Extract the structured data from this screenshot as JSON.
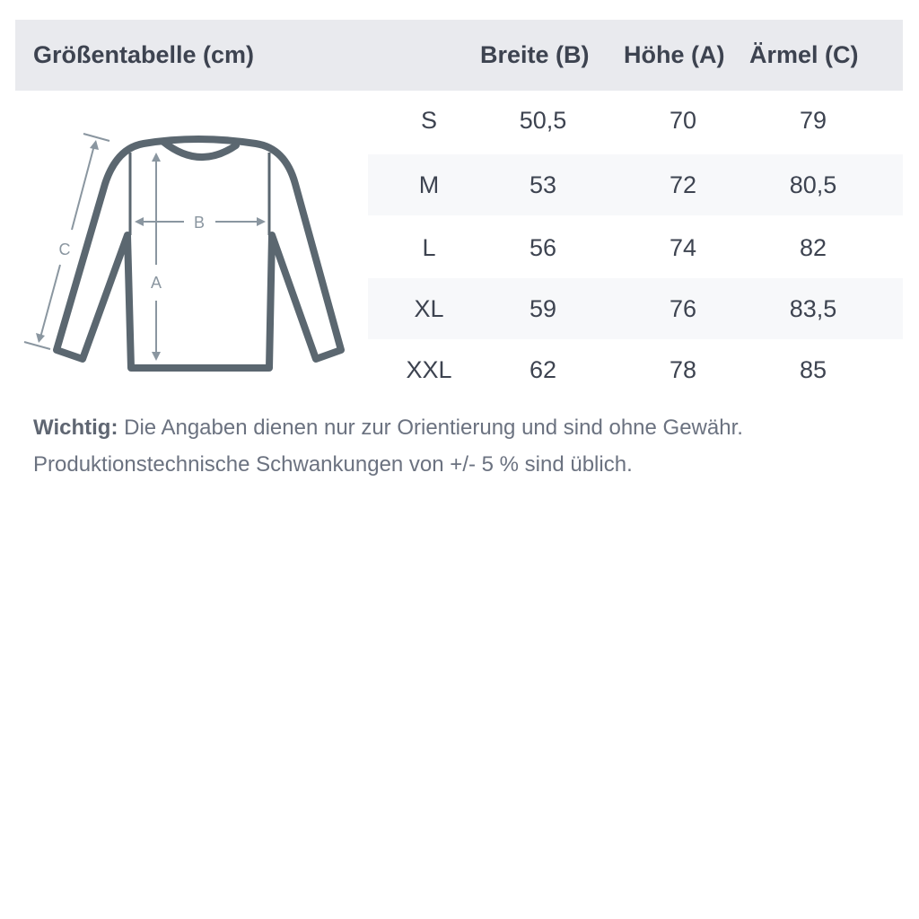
{
  "table": {
    "title": "Größentabelle (cm)",
    "columns": [
      "Breite (B)",
      "Höhe (A)",
      "Ärmel (C)"
    ],
    "rows": [
      {
        "size": "S",
        "values": [
          "50,5",
          "70",
          "79"
        ]
      },
      {
        "size": "M",
        "values": [
          "53",
          "72",
          "80,5"
        ]
      },
      {
        "size": "L",
        "values": [
          "56",
          "74",
          "82"
        ]
      },
      {
        "size": "XL",
        "values": [
          "59",
          "76",
          "83,5"
        ]
      },
      {
        "size": "XXL",
        "values": [
          "62",
          "78",
          "85"
        ]
      }
    ]
  },
  "diagram": {
    "label_a": "A",
    "label_b": "B",
    "label_c": "C",
    "icon": "sweatshirt-measurement-icon"
  },
  "note": {
    "strong": "Wichtig:",
    "line1": "Die Angaben dienen nur zur Orientierung und sind ohne Gewähr.",
    "line2": "Produktionstechnische Schwankungen von +/- 5 % sind üblich."
  },
  "colors": {
    "header_bg": "#e9eaee",
    "stripe": "#f7f8fa",
    "outline": "#5b6770",
    "measure": "#8a96a0"
  }
}
